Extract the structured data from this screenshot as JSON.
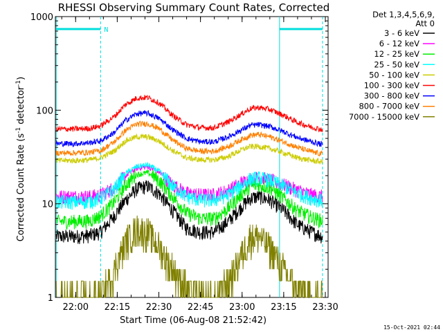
{
  "chart_data": {
    "type": "line",
    "title": "RHESSI Observing Summary Count Rates, Corrected",
    "xlabel": "Start Time (06-Aug-08 21:52:42)",
    "ylabel": "Corrected Count Rate (s⁻¹ detector⁻¹)",
    "ylabel_main": "Corrected Count Rate (s",
    "ylabel_sup1": "-1",
    "ylabel_mid": " detector",
    "ylabel_sup2": "-1",
    "ylabel_end": ")",
    "yscale": "log",
    "ylim": [
      1,
      1000
    ],
    "xlim": [
      "21:52:42",
      "23:31:00"
    ],
    "xticks": [
      "22:00",
      "22:15",
      "22:30",
      "22:45",
      "23:00",
      "23:15",
      "23:30"
    ],
    "yticks": [
      "1",
      "10",
      "100",
      "1000"
    ],
    "legend_header": [
      "Det 1,3,4,5,6,9,",
      "Att 0"
    ],
    "legend_position": "right",
    "footer_date": "15-Oct-2021 02:44",
    "night_marker": "N",
    "night_intervals": [
      {
        "start": "21:53:00",
        "end": "22:09:00"
      },
      {
        "start": "23:13:30",
        "end": "23:29:00"
      }
    ],
    "x": [
      "21:53",
      "22:00",
      "22:05",
      "22:09",
      "22:14",
      "22:18",
      "22:22",
      "22:26",
      "22:30",
      "22:35",
      "22:40",
      "22:45",
      "22:50",
      "22:55",
      "23:00",
      "23:03",
      "23:06",
      "23:10",
      "23:15",
      "23:20",
      "23:25",
      "23:29"
    ],
    "series": [
      {
        "name": "3 - 6 keV",
        "color": "#000000",
        "values": [
          4.5,
          4.5,
          4.6,
          5.0,
          7.5,
          11.0,
          14.5,
          15.5,
          13.0,
          8.5,
          5.5,
          5.0,
          5.0,
          6.5,
          9.5,
          11.5,
          12.0,
          11.0,
          8.5,
          6.0,
          5.0,
          4.5
        ]
      },
      {
        "name": "6 - 12 keV",
        "color": "#ff00ff",
        "values": [
          12.0,
          12.0,
          12.0,
          12.5,
          15.0,
          20.0,
          24.0,
          25.0,
          22.0,
          16.0,
          13.0,
          12.5,
          12.5,
          14.0,
          17.0,
          18.5,
          19.0,
          18.0,
          16.0,
          14.0,
          12.5,
          12.0
        ]
      },
      {
        "name": "12 - 25 keV",
        "color": "#00ee00",
        "values": [
          6.5,
          6.5,
          6.6,
          7.5,
          10.5,
          16.0,
          20.5,
          21.5,
          18.0,
          12.0,
          8.0,
          7.0,
          7.0,
          9.0,
          13.0,
          15.5,
          16.0,
          15.0,
          11.5,
          8.5,
          7.2,
          6.6
        ]
      },
      {
        "name": "25 - 50 keV",
        "color": "#00ffff",
        "values": [
          10.5,
          10.5,
          10.6,
          11.5,
          14.5,
          21.0,
          25.0,
          26.0,
          22.5,
          15.5,
          12.0,
          11.0,
          11.0,
          12.5,
          16.0,
          18.5,
          19.0,
          18.0,
          15.5,
          13.0,
          11.5,
          10.8
        ]
      },
      {
        "name": "50 - 100 keV",
        "color": "#cccc00",
        "values": [
          29.0,
          29.0,
          29.5,
          31.0,
          37.0,
          47.0,
          52.0,
          52.0,
          47.0,
          37.0,
          31.0,
          29.5,
          29.5,
          32.0,
          38.0,
          41.0,
          41.0,
          39.0,
          35.0,
          31.0,
          29.0,
          28.0
        ]
      },
      {
        "name": "100 - 300 keV",
        "color": "#ff0000",
        "values": [
          63.0,
          63.0,
          64.0,
          68.0,
          86.0,
          115.0,
          135.0,
          137.0,
          120.0,
          88.0,
          70.0,
          65.0,
          65.0,
          75.0,
          92.0,
          104.0,
          107.0,
          102.0,
          88.0,
          74.0,
          66.0,
          62.0
        ]
      },
      {
        "name": "300 - 800 keV",
        "color": "#0000ff",
        "values": [
          44.0,
          44.0,
          45.0,
          47.0,
          58.0,
          78.0,
          92.0,
          93.0,
          82.0,
          62.0,
          50.0,
          46.0,
          46.0,
          52.0,
          62.0,
          69.0,
          70.0,
          67.0,
          59.0,
          51.0,
          46.0,
          43.0
        ]
      },
      {
        "name": "800 - 7000 keV",
        "color": "#ff8000",
        "values": [
          35.0,
          35.0,
          35.5,
          37.0,
          46.0,
          61.0,
          71.0,
          72.0,
          64.0,
          48.0,
          39.0,
          36.5,
          36.5,
          41.0,
          49.0,
          54.0,
          55.0,
          52.0,
          46.0,
          40.0,
          36.0,
          34.0
        ]
      },
      {
        "name": "7000 - 15000 keV",
        "color": "#808000",
        "values": [
          1.0,
          1.0,
          1.0,
          1.0,
          2.0,
          4.0,
          5.5,
          5.0,
          3.5,
          2.0,
          1.3,
          1.0,
          1.0,
          1.5,
          3.0,
          4.5,
          4.5,
          3.5,
          2.0,
          1.2,
          1.0,
          1.0
        ]
      }
    ]
  }
}
